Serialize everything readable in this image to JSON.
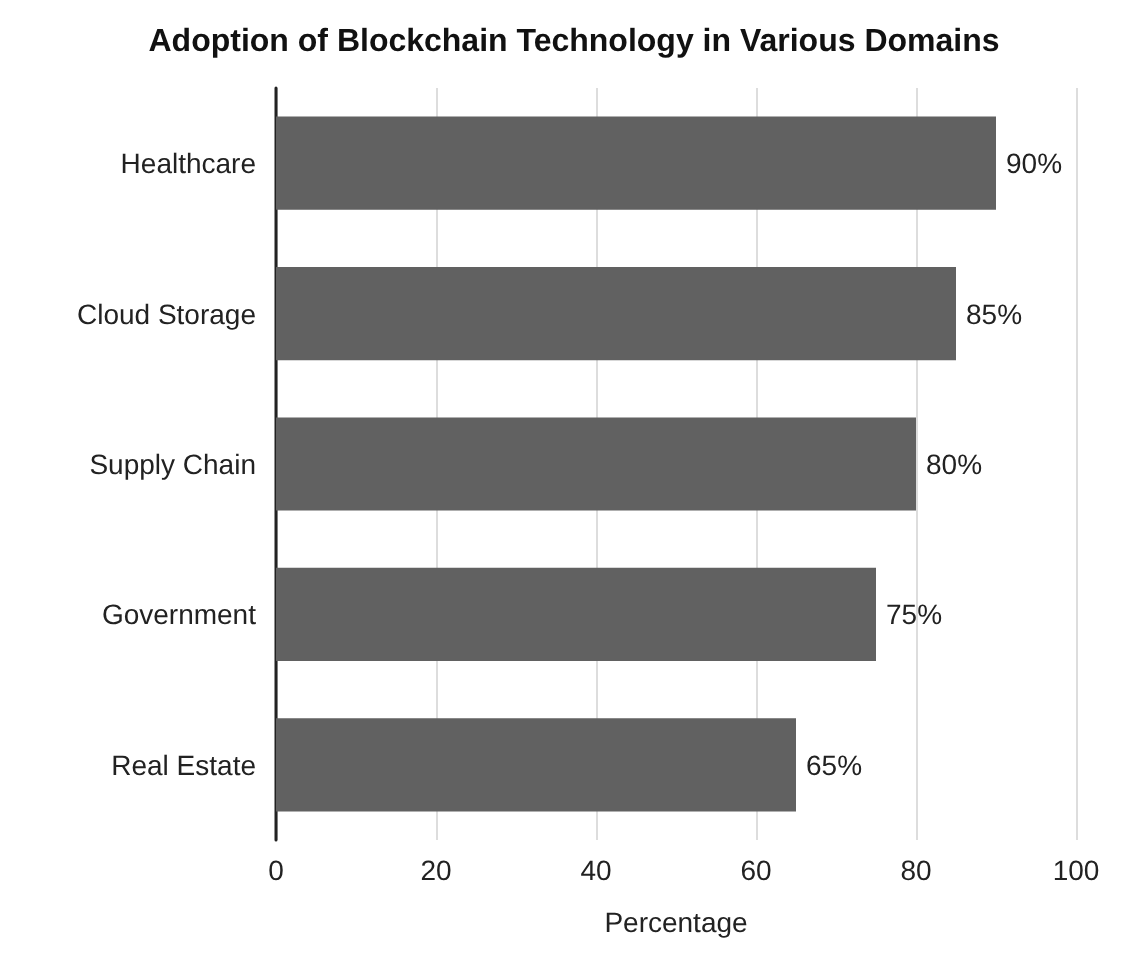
{
  "chart_data": {
    "type": "bar",
    "orientation": "horizontal",
    "title": "Adoption of Blockchain Technology in Various Domains",
    "categories": [
      "Healthcare",
      "Cloud Storage",
      "Supply Chain",
      "Government",
      "Real Estate"
    ],
    "values": [
      90,
      85,
      80,
      75,
      65
    ],
    "color": "#616161",
    "value_labels": [
      "90%",
      "85%",
      "80%",
      "75%",
      "65%"
    ],
    "xlabel": "Percentage",
    "xlim": [
      0,
      100
    ],
    "xticks": [
      0,
      20,
      40,
      60,
      80,
      100
    ],
    "grid": "x"
  }
}
